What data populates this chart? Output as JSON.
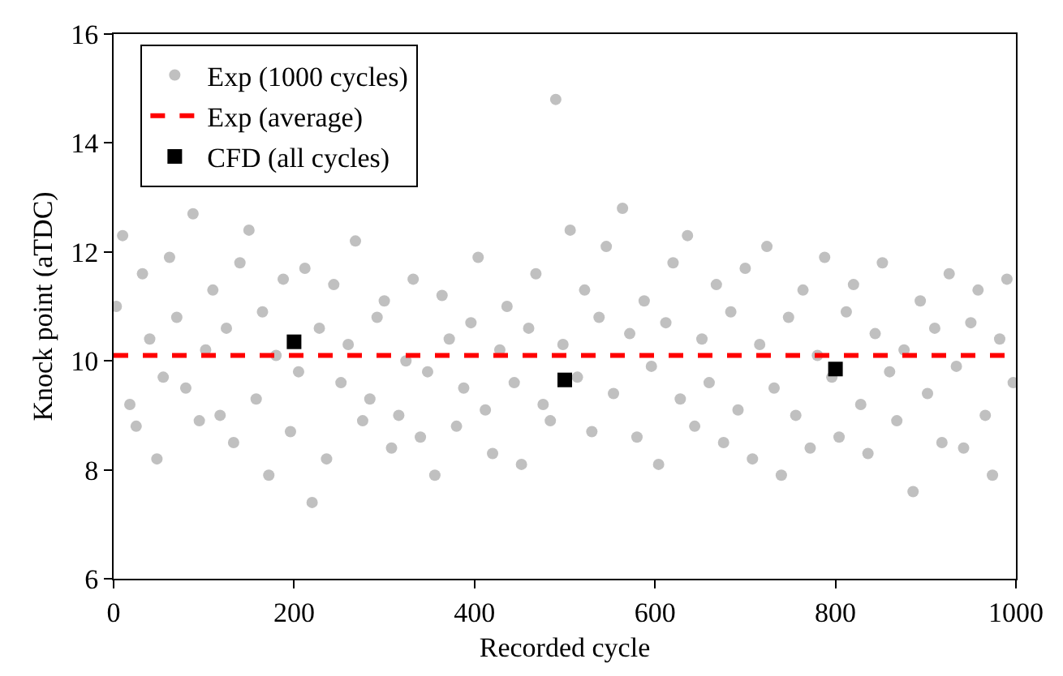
{
  "chart_data": {
    "type": "scatter",
    "xlabel": "Recorded cycle",
    "ylabel": "Knock point (aTDC)",
    "xlim": [
      0,
      1000
    ],
    "xticks": [
      0,
      200,
      400,
      600,
      800,
      1000
    ],
    "ylim": [
      6,
      16
    ],
    "yticks": [
      6,
      8,
      10,
      12,
      14,
      16
    ],
    "grid": false,
    "legend": "top left",
    "series": [
      {
        "name": "Exp (1000 cycles)",
        "marker": "circle",
        "color": "#c0c0c0",
        "x": [
          3,
          10,
          18,
          25,
          32,
          40,
          48,
          55,
          62,
          70,
          80,
          88,
          95,
          102,
          110,
          118,
          125,
          133,
          140,
          150,
          158,
          165,
          172,
          180,
          188,
          196,
          205,
          212,
          220,
          228,
          236,
          244,
          252,
          260,
          268,
          276,
          284,
          292,
          300,
          308,
          316,
          324,
          332,
          340,
          348,
          356,
          364,
          372,
          380,
          388,
          396,
          404,
          412,
          420,
          428,
          436,
          444,
          452,
          460,
          468,
          476,
          484,
          490,
          498,
          506,
          514,
          522,
          530,
          538,
          546,
          554,
          564,
          572,
          580,
          588,
          596,
          604,
          612,
          620,
          628,
          636,
          644,
          652,
          660,
          668,
          676,
          684,
          692,
          700,
          708,
          716,
          724,
          732,
          740,
          748,
          756,
          764,
          772,
          780,
          788,
          796,
          804,
          812,
          820,
          828,
          836,
          844,
          852,
          860,
          868,
          876,
          886,
          894,
          902,
          910,
          918,
          926,
          934,
          942,
          950,
          958,
          966,
          974,
          982,
          990,
          997
        ],
        "values": [
          11.0,
          12.3,
          9.2,
          8.8,
          11.6,
          10.4,
          8.2,
          9.7,
          11.9,
          10.8,
          9.5,
          12.7,
          8.9,
          10.2,
          11.3,
          9.0,
          10.6,
          8.5,
          11.8,
          12.4,
          9.3,
          10.9,
          7.9,
          10.1,
          11.5,
          8.7,
          9.8,
          11.7,
          7.4,
          10.6,
          8.2,
          11.4,
          9.6,
          10.3,
          12.2,
          8.9,
          9.3,
          10.8,
          11.1,
          8.4,
          9.0,
          10.0,
          11.5,
          8.6,
          9.8,
          7.9,
          11.2,
          10.4,
          8.8,
          9.5,
          10.7,
          11.9,
          9.1,
          8.3,
          10.2,
          11.0,
          9.6,
          8.1,
          10.6,
          11.6,
          9.2,
          8.9,
          14.8,
          10.3,
          12.4,
          9.7,
          11.3,
          8.7,
          10.8,
          12.1,
          9.4,
          12.8,
          10.5,
          8.6,
          11.1,
          9.9,
          8.1,
          10.7,
          11.8,
          9.3,
          12.3,
          8.8,
          10.4,
          9.6,
          11.4,
          8.5,
          10.9,
          9.1,
          11.7,
          8.2,
          10.3,
          12.1,
          9.5,
          7.9,
          10.8,
          9.0,
          11.3,
          8.4,
          10.1,
          11.9,
          9.7,
          8.6,
          10.9,
          11.4,
          9.2,
          8.3,
          10.5,
          11.8,
          9.8,
          8.9,
          10.2,
          7.6,
          11.1,
          9.4,
          10.6,
          8.5,
          11.6,
          9.9,
          8.4,
          10.7,
          11.3,
          9.0,
          7.9,
          10.4,
          11.5,
          9.6
        ]
      },
      {
        "name": "Exp (average)",
        "type": "line",
        "line_style": "dashed",
        "color": "#ff0000",
        "x": [
          0,
          1000
        ],
        "values": [
          10.1,
          10.1
        ]
      },
      {
        "name": "CFD (all cycles)",
        "marker": "square",
        "color": "#000000",
        "x": [
          200,
          500,
          800
        ],
        "values": [
          10.35,
          9.65,
          9.85
        ]
      }
    ]
  }
}
